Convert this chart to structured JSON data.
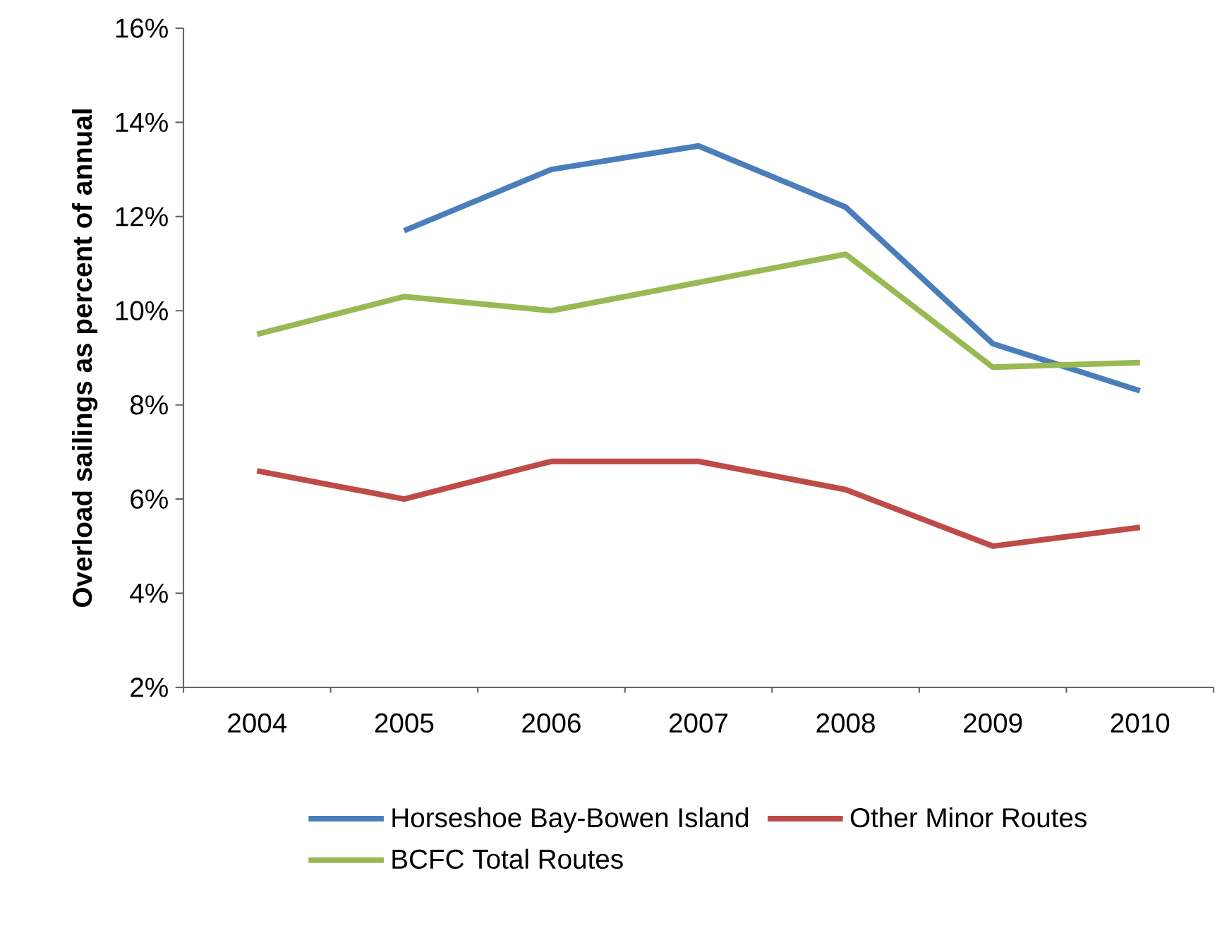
{
  "chart_data": {
    "type": "line",
    "ylabel": "Overload sailings as percent of  annual",
    "categories": [
      "2004",
      "2005",
      "2006",
      "2007",
      "2008",
      "2009",
      "2010"
    ],
    "series": [
      {
        "name": "Horseshoe Bay-Bowen Island",
        "color": "#4a7ebb",
        "values": [
          null,
          11.7,
          13.0,
          13.5,
          12.2,
          9.3,
          8.3
        ]
      },
      {
        "name": "Other Minor Routes",
        "color": "#be4b48",
        "values": [
          6.6,
          6.0,
          6.8,
          6.8,
          6.2,
          5.0,
          5.4
        ]
      },
      {
        "name": "BCFC Total Routes",
        "color": "#98b954",
        "values": [
          9.5,
          10.3,
          10.0,
          10.6,
          11.2,
          8.8,
          8.9
        ]
      }
    ],
    "ylim": [
      2,
      16
    ],
    "yticks": [
      {
        "value": 2,
        "label": "2%"
      },
      {
        "value": 4,
        "label": "4%"
      },
      {
        "value": 6,
        "label": "6%"
      },
      {
        "value": 8,
        "label": "8%"
      },
      {
        "value": 10,
        "label": "10%"
      },
      {
        "value": 12,
        "label": "12%"
      },
      {
        "value": 14,
        "label": "14%"
      },
      {
        "value": 16,
        "label": "16%"
      }
    ],
    "grid": false,
    "legend": "bottom",
    "marker": "none",
    "line_style": "solid"
  }
}
